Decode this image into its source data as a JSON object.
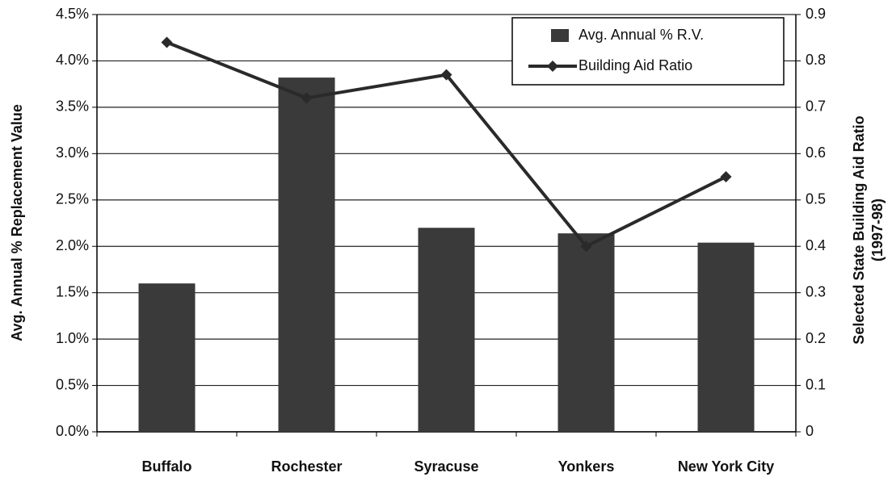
{
  "chart_data": {
    "type": "bar",
    "categories": [
      "Buffalo",
      "Rochester",
      "Syracuse",
      "Yonkers",
      "New York City"
    ],
    "series": [
      {
        "name": "Avg. Annual % R.V.",
        "type": "bar",
        "color": "#3a3a3a",
        "values": [
          1.6,
          3.82,
          2.2,
          2.14,
          2.04
        ]
      },
      {
        "name": "Building Aid Ratio",
        "type": "line",
        "axis": "y2",
        "color": "#2a2a2a",
        "values": [
          0.84,
          0.72,
          0.77,
          0.4,
          0.55
        ]
      }
    ],
    "y_label": "Avg. Annual % Replacement Value",
    "y2_label": [
      "Selected State Building Aid Ratio",
      "(1997-98)"
    ],
    "ylim": [
      0,
      4.5
    ],
    "yticks": [
      {
        "value": 0,
        "label": "0.0%"
      },
      {
        "value": 0.5,
        "label": "0.5%"
      },
      {
        "value": 1,
        "label": "1.0%"
      },
      {
        "value": 1.5,
        "label": "1.5%"
      },
      {
        "value": 2,
        "label": "2.0%"
      },
      {
        "value": 2.5,
        "label": "2.5%"
      },
      {
        "value": 3,
        "label": "3.0%"
      },
      {
        "value": 3.5,
        "label": "3.5%"
      },
      {
        "value": 4,
        "label": "4.0%"
      },
      {
        "value": 4.5,
        "label": "4.5%"
      }
    ],
    "y2lim": [
      0,
      0.9
    ],
    "y2ticks": [
      0,
      0.1,
      0.2,
      0.3,
      0.4,
      0.5,
      0.6,
      0.7,
      0.8,
      0.9
    ],
    "grid": true,
    "legend": "top-right"
  }
}
